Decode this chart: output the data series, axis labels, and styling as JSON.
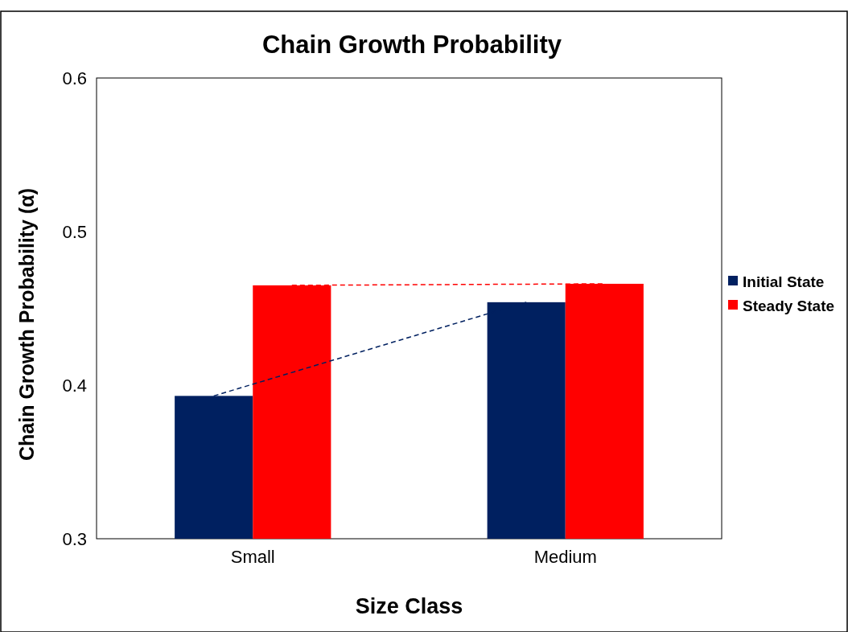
{
  "chart_data": {
    "type": "bar",
    "title": "Chain Growth Probability",
    "xlabel": "Size Class",
    "ylabel": "Chain Growth Probability (α)",
    "categories": [
      "Small",
      "Medium"
    ],
    "series": [
      {
        "name": "Initial State",
        "color": "#002060",
        "values": [
          0.393,
          0.454
        ]
      },
      {
        "name": "Steady State",
        "color": "#ff0000",
        "values": [
          0.465,
          0.466
        ]
      },
      {
        "type": "line",
        "color": "#002060",
        "values": [
          0.393,
          0.454
        ],
        "line_style": "dashed"
      },
      {
        "type": "line",
        "color": "#ff0000",
        "values": [
          0.465,
          0.466
        ],
        "line_style": "dashed"
      }
    ],
    "ylim": [
      0.3,
      0.6
    ],
    "yticks": [
      0.3,
      0.4,
      0.5,
      0.6
    ],
    "grid": false,
    "legend": "right"
  }
}
